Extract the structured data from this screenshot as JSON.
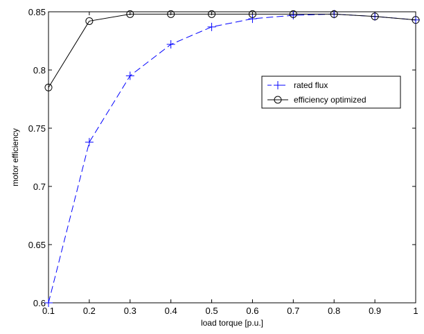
{
  "chart_data": {
    "type": "line",
    "title": "",
    "xlabel": "load torque [p.u.]",
    "ylabel": "motor efficiency",
    "xlim": [
      0.1,
      1
    ],
    "ylim": [
      0.6,
      0.85
    ],
    "x_ticks": [
      "0.1",
      "0.2",
      "0.3",
      "0.4",
      "0.5",
      "0.6",
      "0.7",
      "0.8",
      "0.9",
      "1"
    ],
    "y_ticks": [
      "0.6",
      "0.65",
      "0.7",
      "0.75",
      "0.8",
      "0.85"
    ],
    "x": [
      0.1,
      0.2,
      0.3,
      0.4,
      0.5,
      0.6,
      0.7,
      0.8,
      0.9,
      1.0
    ],
    "series": [
      {
        "name": "rated flux",
        "color": "#0000ff",
        "line_style": "dashed",
        "marker": "plus",
        "values": [
          0.6,
          0.738,
          0.795,
          0.822,
          0.837,
          0.844,
          0.847,
          0.848,
          0.846,
          0.843
        ]
      },
      {
        "name": "efficiency optimized",
        "color": "#000000",
        "line_style": "solid",
        "marker": "circle",
        "values": [
          0.785,
          0.842,
          0.848,
          0.848,
          0.848,
          0.848,
          0.848,
          0.848,
          0.846,
          0.843
        ]
      }
    ],
    "grid": false,
    "legend_position": "right"
  }
}
